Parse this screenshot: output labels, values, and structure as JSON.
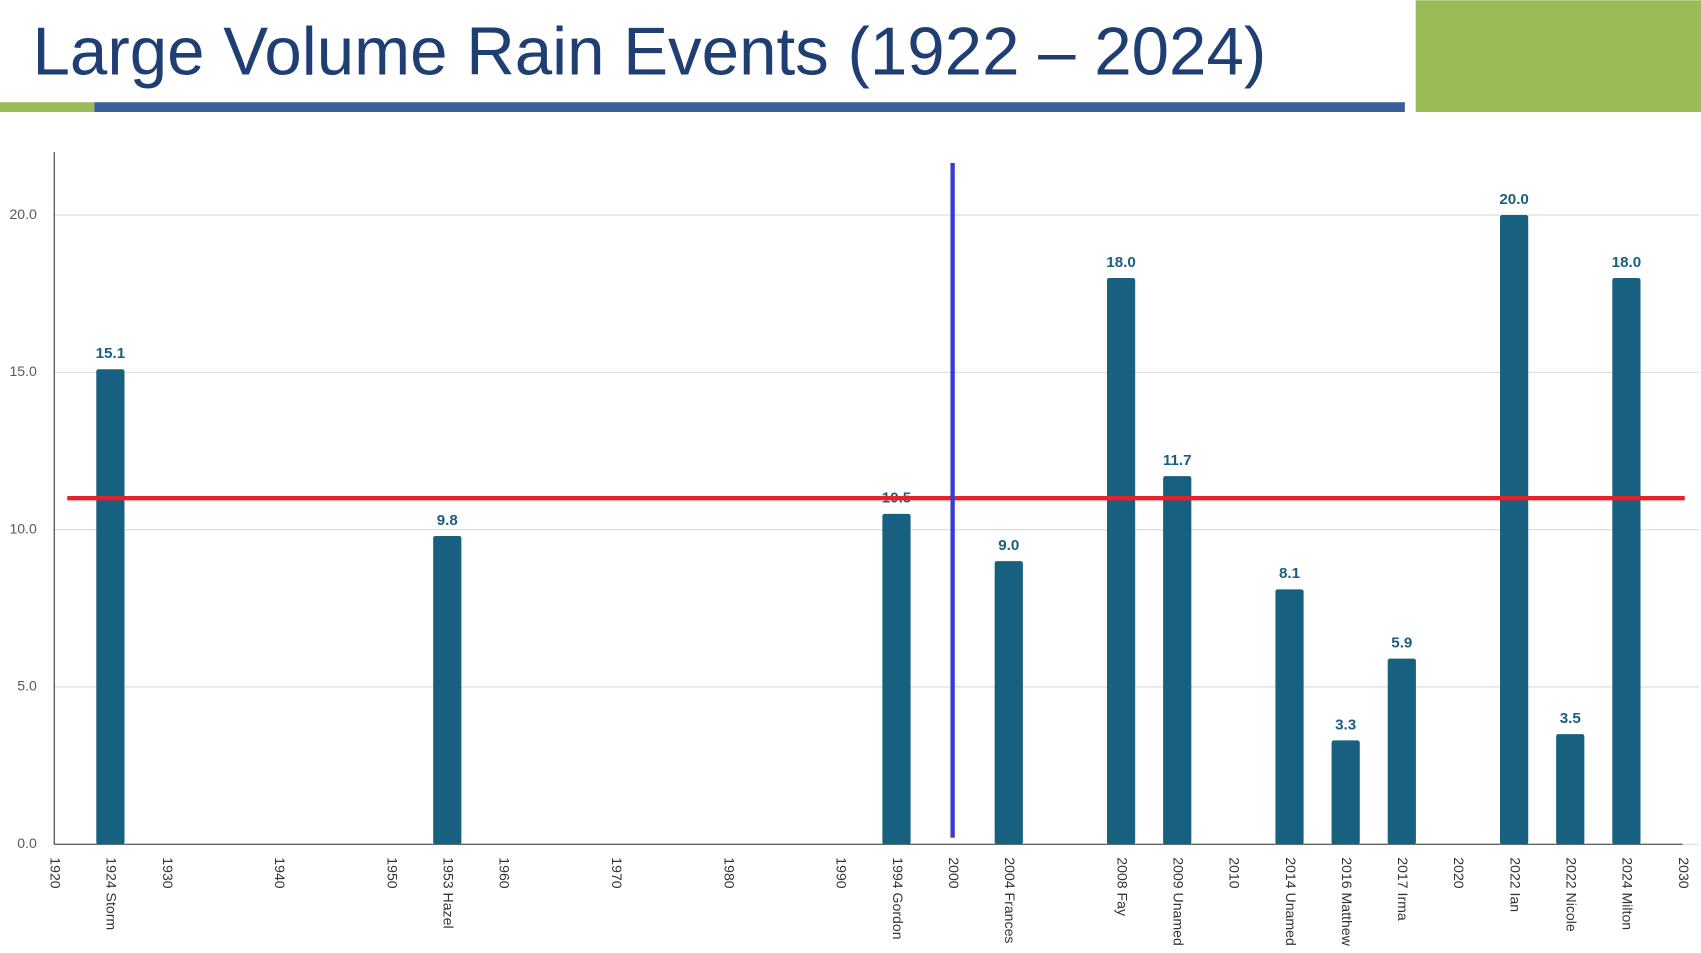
{
  "chart_data": {
    "type": "bar",
    "title": "Large Volume Rain Events (1922 – 2024)",
    "categories": [
      "1920",
      "1924 Storm",
      "1930",
      null,
      "1940",
      null,
      "1950",
      "1953 Hazel",
      "1960",
      null,
      "1970",
      null,
      "1980",
      null,
      "1990",
      "1994 Gordon",
      "2000",
      "2004 Frances",
      null,
      "2008 Fay",
      "2009 Unamed",
      "2010",
      "2014 Unamed",
      "2016 Matthew",
      "2017 Irma",
      "2020",
      "2022 Ian",
      "2022 Nicole",
      "2024 Milton",
      "2030"
    ],
    "values": [
      null,
      15.1,
      null,
      null,
      null,
      null,
      null,
      9.8,
      null,
      null,
      null,
      null,
      null,
      null,
      null,
      10.5,
      null,
      9.0,
      null,
      18.0,
      11.7,
      null,
      8.1,
      3.3,
      5.9,
      null,
      20.0,
      3.5,
      18.0,
      null
    ],
    "value_labels": [
      null,
      "15.1",
      null,
      null,
      null,
      null,
      null,
      "9.8",
      null,
      null,
      null,
      null,
      null,
      null,
      null,
      "10.5",
      null,
      "9.0",
      null,
      "18.0",
      "11.7",
      null,
      "8.1",
      "3.3",
      "5.9",
      null,
      "20.0",
      "3.5",
      "18.0",
      null
    ],
    "color": "#17607f",
    "ylim": [
      0,
      22
    ],
    "yticks": [
      {
        "value": 0,
        "label": "0.0"
      },
      {
        "value": 5,
        "label": "5.0"
      },
      {
        "value": 10,
        "label": "10.0"
      },
      {
        "value": 15,
        "label": "15.0"
      },
      {
        "value": 20,
        "label": "20.0"
      }
    ],
    "grid": true,
    "hline": {
      "value": 11,
      "color": "#e8202a"
    },
    "vline": {
      "category": "2000",
      "color": "#3b3bd0"
    }
  }
}
